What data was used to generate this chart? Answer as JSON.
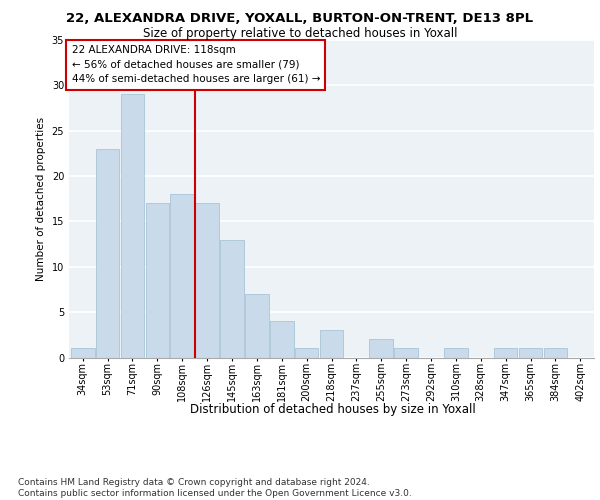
{
  "title": "22, ALEXANDRA DRIVE, YOXALL, BURTON-ON-TRENT, DE13 8PL",
  "subtitle": "Size of property relative to detached houses in Yoxall",
  "xlabel": "Distribution of detached houses by size in Yoxall",
  "ylabel": "Number of detached properties",
  "bar_color": "#c9daea",
  "bar_edgecolor": "#a8c4d8",
  "bin_labels": [
    "34sqm",
    "53sqm",
    "71sqm",
    "90sqm",
    "108sqm",
    "126sqm",
    "145sqm",
    "163sqm",
    "181sqm",
    "200sqm",
    "218sqm",
    "237sqm",
    "255sqm",
    "273sqm",
    "292sqm",
    "310sqm",
    "328sqm",
    "347sqm",
    "365sqm",
    "384sqm",
    "402sqm"
  ],
  "bar_heights": [
    1,
    23,
    29,
    17,
    18,
    17,
    13,
    7,
    4,
    1,
    3,
    0,
    2,
    1,
    0,
    1,
    0,
    1,
    1,
    1,
    0
  ],
  "vline_x": 4.5,
  "vline_color": "#cc0000",
  "annotation_text": "22 ALEXANDRA DRIVE: 118sqm\n← 56% of detached houses are smaller (79)\n44% of semi-detached houses are larger (61) →",
  "annotation_box_color": "#cc0000",
  "footer_text": "Contains HM Land Registry data © Crown copyright and database right 2024.\nContains public sector information licensed under the Open Government Licence v3.0.",
  "ylim": [
    0,
    35
  ],
  "yticks": [
    0,
    5,
    10,
    15,
    20,
    25,
    30,
    35
  ],
  "bg_color": "#edf2f7",
  "grid_color": "#ffffff",
  "title_fontsize": 9.5,
  "subtitle_fontsize": 8.5,
  "ylabel_fontsize": 7.5,
  "xlabel_fontsize": 8.5,
  "tick_fontsize": 7,
  "annotation_fontsize": 7.5,
  "footer_fontsize": 6.5
}
